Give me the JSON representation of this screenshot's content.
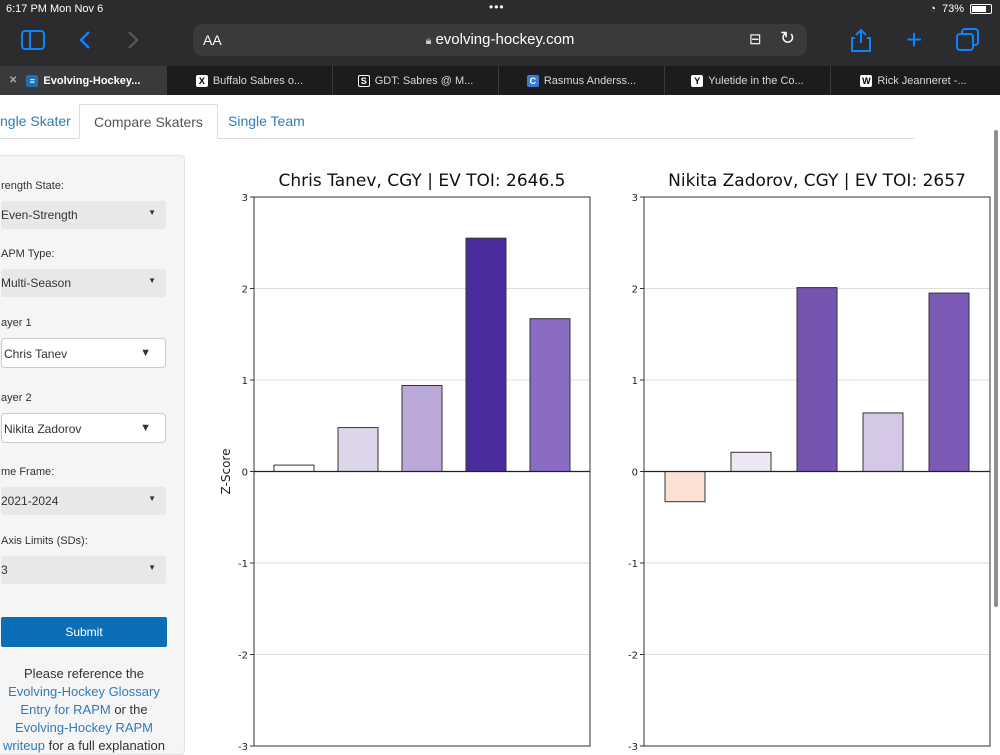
{
  "status": {
    "time": "6:17 PM  Mon Nov 6",
    "battery": "73%"
  },
  "toolbar": {
    "aa": "AA",
    "url": "evolving-hockey.com"
  },
  "tabs": [
    {
      "title": "Evolving-Hockey...",
      "fav": "≡"
    },
    {
      "title": "Buffalo Sabres o...",
      "fav": "X"
    },
    {
      "title": "GDT: Sabres @ M...",
      "fav": "S"
    },
    {
      "title": "Rasmus Anderss...",
      "fav": "C"
    },
    {
      "title": "Yuletide in the Co...",
      "fav": "Y"
    },
    {
      "title": "Rick Jeanneret -...",
      "fav": "W"
    }
  ],
  "page_tabs": [
    "ngle Skater",
    "Compare Skaters",
    "Single Team"
  ],
  "sidebar": {
    "strength_label": "rength State:",
    "strength_value": "Even-Strength",
    "rapm_label": "APM Type:",
    "rapm_value": "Multi-Season",
    "player1_label": "ayer 1",
    "player1_value": "Chris Tanev",
    "player2_label": "ayer 2",
    "player2_value": "Nikita Zadorov",
    "timeframe_label": "me Frame:",
    "timeframe_value": "2021-2024",
    "axis_label": "Axis Limits (SDs):",
    "axis_value": "3",
    "submit": "Submit",
    "note_1": "Please reference the",
    "note_link1": "Evolving-Hockey Glossary Entry for RAPM",
    "note_2": " or the ",
    "note_link2": "Evolving-Hockey RAPM writeup",
    "note_3": " for a full explanation"
  },
  "chart_data": [
    {
      "type": "bar",
      "title": "Chris Tanev, CGY  |  EV TOI: 2646.5",
      "ylabel": "Z-Score",
      "ylim": [
        -3,
        3
      ],
      "yticks": [
        3,
        2,
        1,
        0,
        -1,
        -2,
        -3
      ],
      "values": [
        0.07,
        0.48,
        0.94,
        2.55,
        1.67
      ],
      "colors": [
        "#ffffff",
        "#ddd5ea",
        "#bba8d8",
        "#4a2c9c",
        "#8a6cc4"
      ]
    },
    {
      "type": "bar",
      "title": "Nikita Zadorov, CGY  |  EV TOI: 2657",
      "ylabel": "",
      "ylim": [
        -3,
        3
      ],
      "yticks": [
        3,
        2,
        1,
        0,
        -1,
        -2,
        -3
      ],
      "values": [
        -0.33,
        0.21,
        2.01,
        0.64,
        1.95
      ],
      "colors": [
        "#fbe0d6",
        "#ece7f3",
        "#7554b2",
        "#d4c8e6",
        "#7a5ab4"
      ]
    }
  ]
}
